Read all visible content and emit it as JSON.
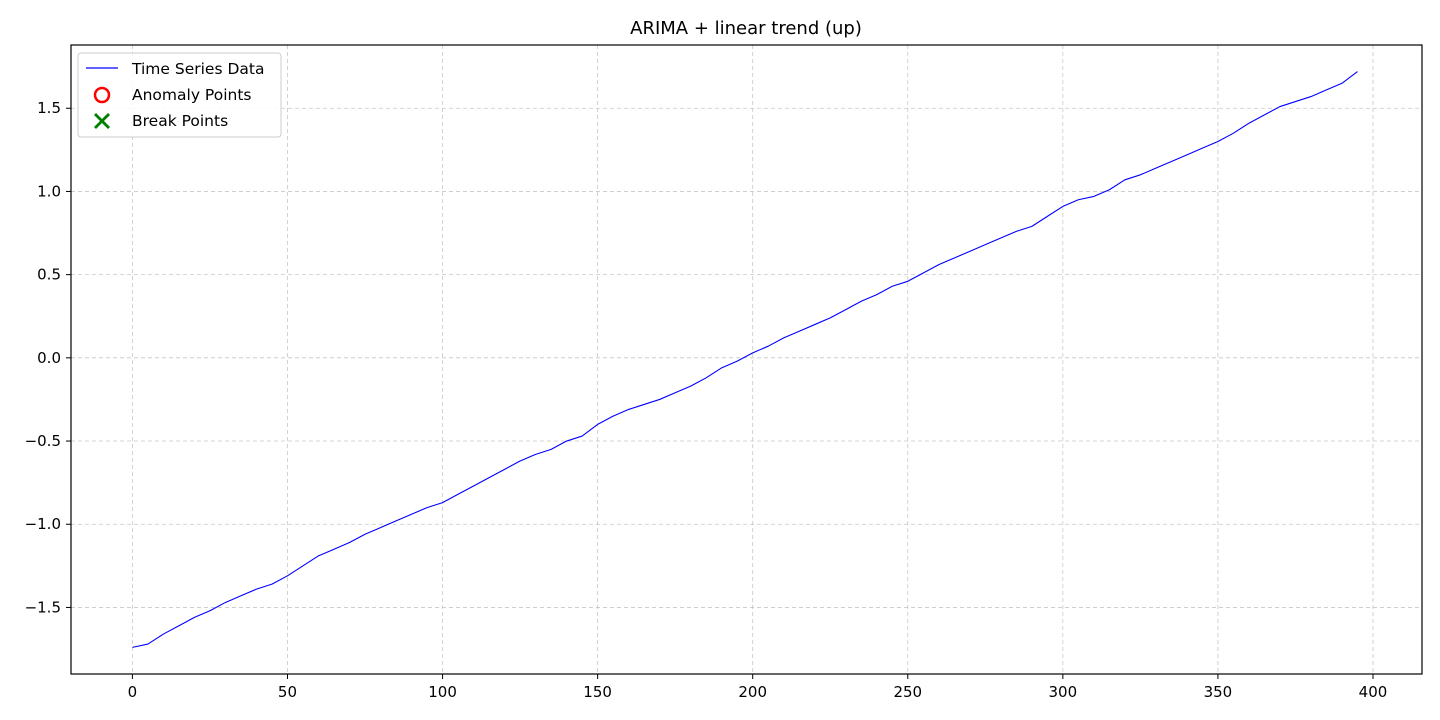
{
  "chart_data": {
    "type": "line",
    "title": "ARIMA + linear trend (up)",
    "xlabel": "",
    "ylabel": "",
    "xlim": [
      -19.8,
      415.8
    ],
    "ylim": [
      -1.9,
      1.88
    ],
    "x_ticks": [
      0,
      50,
      100,
      150,
      200,
      250,
      300,
      350,
      400
    ],
    "x_tick_labels": [
      "0",
      "50",
      "100",
      "150",
      "200",
      "250",
      "300",
      "350",
      "400"
    ],
    "y_ticks": [
      -1.5,
      -1.0,
      -0.5,
      0.0,
      0.5,
      1.0,
      1.5
    ],
    "y_tick_labels": [
      "−1.5",
      "−1.0",
      "−0.5",
      "0.0",
      "0.5",
      "1.0",
      "1.5"
    ],
    "grid": true,
    "legend": {
      "placement": "upper-left",
      "entries": [
        {
          "label": "Time Series Data",
          "marker": "line",
          "color": "#0000ff"
        },
        {
          "label": "Anomaly Points",
          "marker": "open-circle",
          "color": "#ff0000"
        },
        {
          "label": "Break Points",
          "marker": "x",
          "color": "#008000"
        }
      ]
    },
    "series": [
      {
        "name": "Time Series Data",
        "color": "#0000ff",
        "x": [
          0,
          5,
          10,
          15,
          20,
          25,
          30,
          35,
          40,
          45,
          50,
          55,
          60,
          65,
          70,
          75,
          80,
          85,
          90,
          95,
          100,
          105,
          110,
          115,
          120,
          125,
          130,
          135,
          140,
          145,
          150,
          155,
          160,
          165,
          170,
          175,
          180,
          185,
          190,
          195,
          200,
          205,
          210,
          215,
          220,
          225,
          230,
          235,
          240,
          245,
          250,
          255,
          260,
          265,
          270,
          275,
          280,
          285,
          290,
          295,
          300,
          305,
          310,
          315,
          320,
          325,
          330,
          335,
          340,
          345,
          350,
          355,
          360,
          365,
          370,
          375,
          380,
          385,
          390,
          395
        ],
        "y": [
          -1.74,
          -1.72,
          -1.66,
          -1.61,
          -1.56,
          -1.52,
          -1.47,
          -1.43,
          -1.39,
          -1.36,
          -1.31,
          -1.25,
          -1.19,
          -1.15,
          -1.11,
          -1.06,
          -1.02,
          -0.98,
          -0.94,
          -0.9,
          -0.87,
          -0.82,
          -0.77,
          -0.72,
          -0.67,
          -0.62,
          -0.58,
          -0.55,
          -0.5,
          -0.47,
          -0.4,
          -0.35,
          -0.31,
          -0.28,
          -0.25,
          -0.21,
          -0.17,
          -0.12,
          -0.06,
          -0.02,
          0.03,
          0.07,
          0.12,
          0.16,
          0.2,
          0.24,
          0.29,
          0.34,
          0.38,
          0.43,
          0.46,
          0.51,
          0.56,
          0.6,
          0.64,
          0.68,
          0.72,
          0.76,
          0.79,
          0.85,
          0.91,
          0.95,
          0.97,
          1.01,
          1.07,
          1.1,
          1.14,
          1.18,
          1.22,
          1.26,
          1.3,
          1.35,
          1.41,
          1.46,
          1.51,
          1.54,
          1.57,
          1.61,
          1.65,
          1.72
        ]
      }
    ]
  }
}
